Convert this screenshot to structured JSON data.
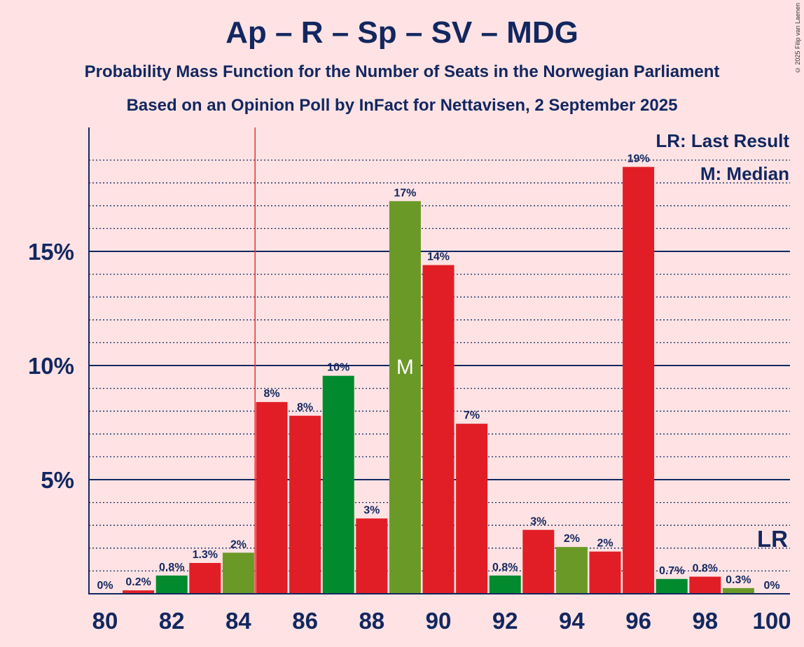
{
  "title": "Ap – R – Sp – SV – MDG",
  "subtitle1": "Probability Mass Function for the Number of Seats in the Norwegian Parliament",
  "subtitle2": "Based on an Opinion Poll by InFact for Nettavisen, 2 September 2025",
  "copyright": "© 2025 Filip van Laenen",
  "colors": {
    "background": "#FFE3E4",
    "text": "#12275F",
    "red": "#E11E26",
    "green_dark": "#018A2E",
    "green_olive": "#6A9928",
    "lr_line": "#F03030"
  },
  "chart_data": {
    "type": "bar",
    "title": "Ap – R – Sp – SV – MDG",
    "xlabel": "",
    "ylabel": "",
    "ylim": [
      0,
      20.5
    ],
    "y_ticks": [
      {
        "value": 5,
        "label": "5%"
      },
      {
        "value": 10,
        "label": "10%"
      },
      {
        "value": 15,
        "label": "15%"
      }
    ],
    "x_ticks": [
      80,
      82,
      84,
      86,
      88,
      90,
      92,
      94,
      96,
      98,
      100
    ],
    "last_result": 84.5,
    "median": 89,
    "median_label": "M",
    "legend": {
      "lr": "LR: Last Result",
      "m": "M: Median"
    },
    "lr_label": "LR",
    "bars": [
      {
        "x": 80,
        "value": 0,
        "label": "0%",
        "color": "red"
      },
      {
        "x": 81,
        "value": 0.15,
        "label": "0.2%",
        "color": "red"
      },
      {
        "x": 82,
        "value": 0.8,
        "label": "0.8%",
        "color": "green_dark"
      },
      {
        "x": 83,
        "value": 1.35,
        "label": "1.3%",
        "color": "red"
      },
      {
        "x": 84,
        "value": 1.8,
        "label": "2%",
        "color": "green_olive"
      },
      {
        "x": 85,
        "value": 8.4,
        "label": "8%",
        "color": "red"
      },
      {
        "x": 86,
        "value": 7.8,
        "label": "8%",
        "color": "red"
      },
      {
        "x": 87,
        "value": 9.55,
        "label": "10%",
        "color": "green_dark"
      },
      {
        "x": 88,
        "value": 3.3,
        "label": "3%",
        "color": "red"
      },
      {
        "x": 89,
        "value": 17.2,
        "label": "17%",
        "color": "green_olive"
      },
      {
        "x": 90,
        "value": 14.4,
        "label": "14%",
        "color": "red"
      },
      {
        "x": 91,
        "value": 7.45,
        "label": "7%",
        "color": "red"
      },
      {
        "x": 92,
        "value": 0.8,
        "label": "0.8%",
        "color": "green_dark"
      },
      {
        "x": 93,
        "value": 2.8,
        "label": "3%",
        "color": "red"
      },
      {
        "x": 94,
        "value": 2.05,
        "label": "2%",
        "color": "green_olive"
      },
      {
        "x": 95,
        "value": 1.85,
        "label": "2%",
        "color": "red"
      },
      {
        "x": 96,
        "value": 18.7,
        "label": "19%",
        "color": "red"
      },
      {
        "x": 97,
        "value": 0.65,
        "label": "0.7%",
        "color": "green_dark"
      },
      {
        "x": 98,
        "value": 0.75,
        "label": "0.8%",
        "color": "red"
      },
      {
        "x": 99,
        "value": 0.25,
        "label": "0.3%",
        "color": "green_olive"
      },
      {
        "x": 100,
        "value": 0,
        "label": "0%",
        "color": "red"
      }
    ]
  }
}
